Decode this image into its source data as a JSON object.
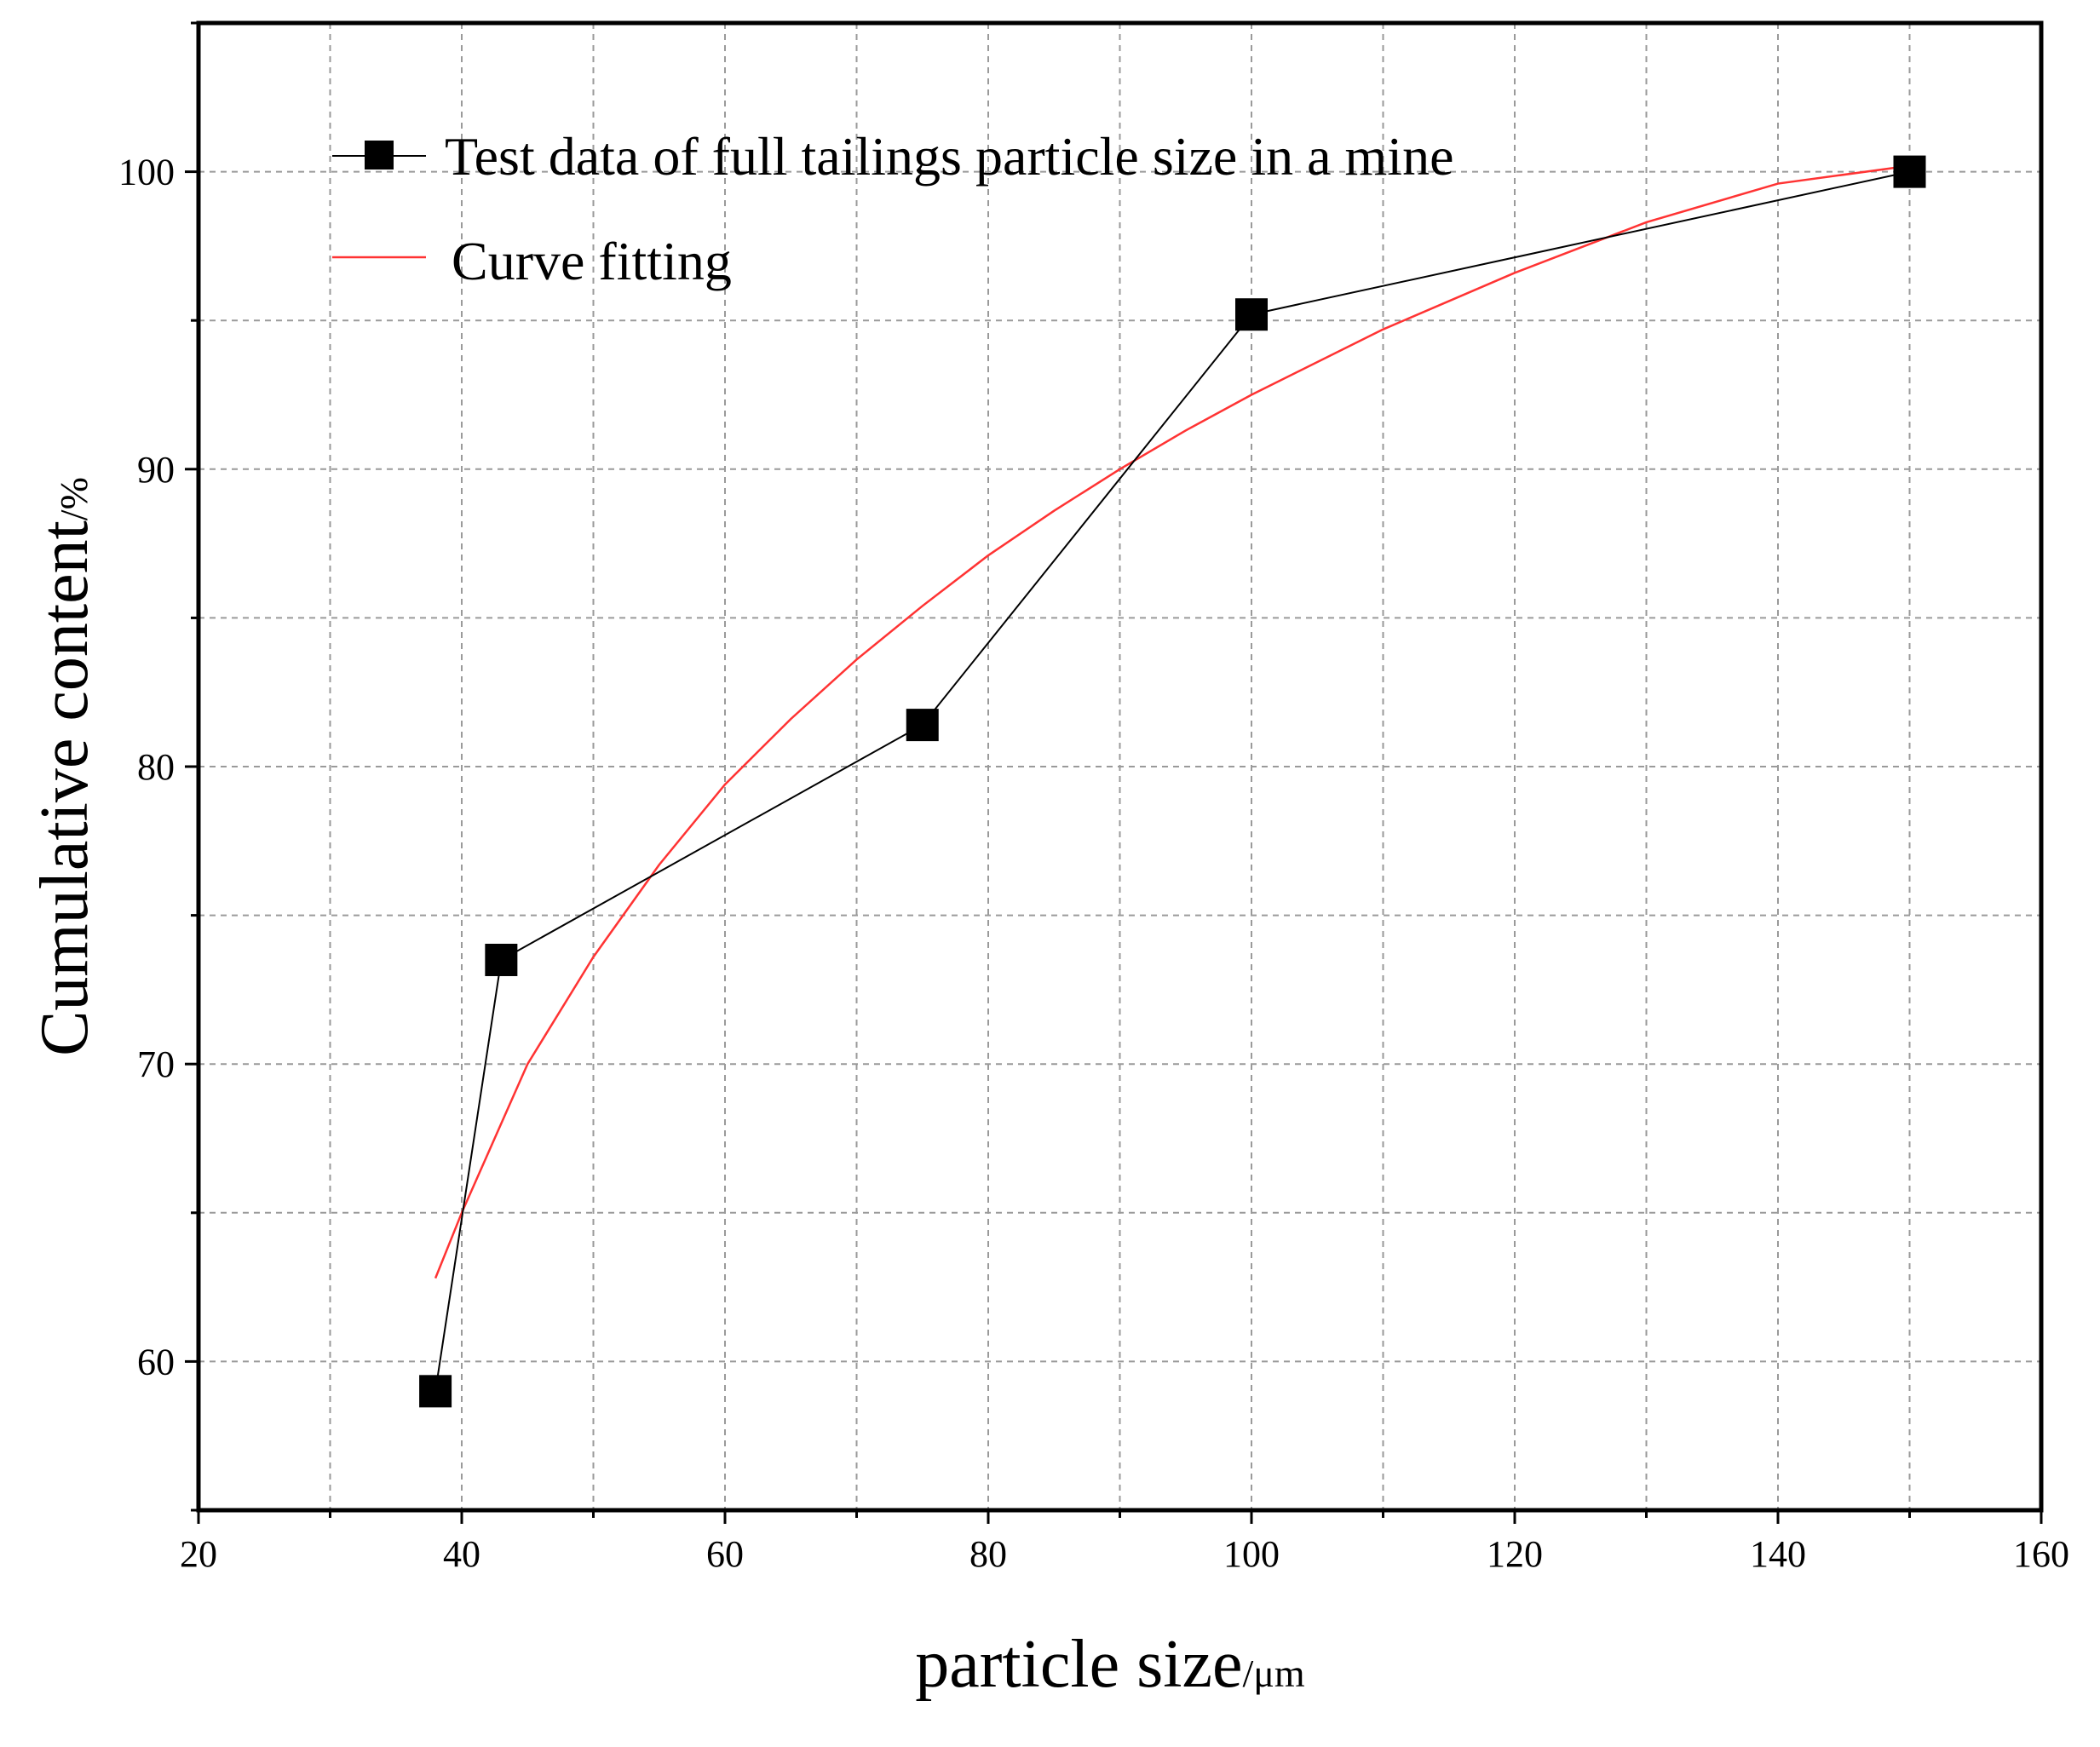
{
  "chart_data": {
    "type": "line",
    "title": "",
    "xlabel": {
      "main": "particle size",
      "unit": "/μm"
    },
    "ylabel": {
      "main": "Cumulative content",
      "unit": "/%"
    },
    "xlim": [
      20,
      160
    ],
    "ylim": [
      55,
      105
    ],
    "x_ticks": [
      20,
      40,
      60,
      80,
      100,
      120,
      140,
      160
    ],
    "y_ticks": [
      60,
      70,
      80,
      90,
      100
    ],
    "x_grid": [
      30,
      40,
      50,
      60,
      70,
      80,
      90,
      100,
      110,
      120,
      130,
      140,
      150
    ],
    "y_grid": [
      60,
      65,
      70,
      75,
      80,
      85,
      90,
      95,
      100
    ],
    "grid": true,
    "series": [
      {
        "name": "Test data of full tailings particle size in a mine",
        "marker": "square",
        "color": "#000000",
        "x": [
          38,
          43,
          75,
          100,
          150
        ],
        "y": [
          59.0,
          73.5,
          81.4,
          95.2,
          100.0
        ]
      },
      {
        "name": "Curve fitting",
        "marker": "none",
        "color": "#ff3333",
        "x": [
          38,
          40,
          45,
          50,
          55,
          60,
          65,
          70,
          75,
          80,
          85,
          90,
          95,
          100,
          110,
          120,
          130,
          140,
          150
        ],
        "y": [
          62.8,
          65.0,
          70.0,
          73.6,
          76.7,
          79.4,
          81.6,
          83.6,
          85.4,
          87.1,
          88.6,
          90.0,
          91.3,
          92.5,
          94.7,
          96.6,
          98.3,
          99.6,
          100.2
        ]
      }
    ],
    "legend_position": "top-left"
  }
}
